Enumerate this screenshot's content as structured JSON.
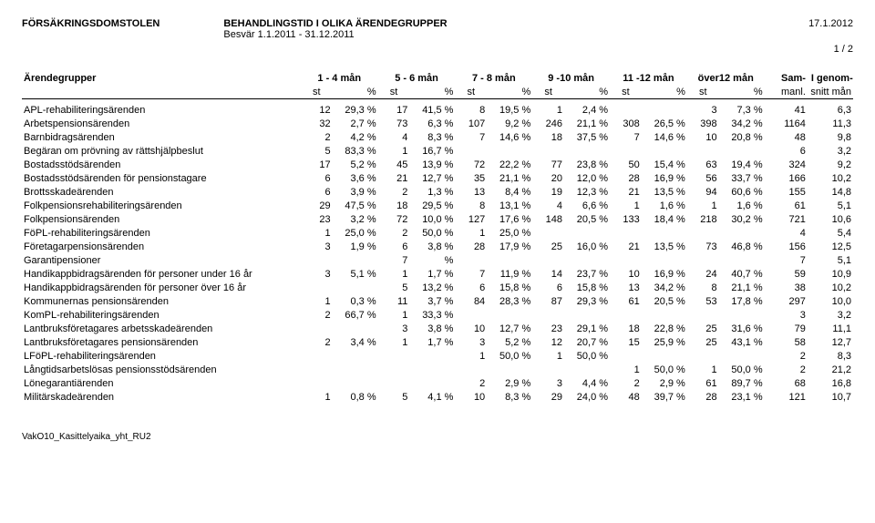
{
  "header": {
    "court": "FÖRSÄKRINGSDOMSTOLEN",
    "title": "BEHANDLINGSTID I OLIKA ÄRENDEGRUPPER",
    "date": "17.1.2012",
    "subtitle": "Besvär 1.1.2011 - 31.12.2011",
    "page": "1 / 2"
  },
  "columns": {
    "group": "Ärendegrupper",
    "ranges": [
      "1 - 4 mån",
      "5 - 6 mån",
      "7 - 8 mån",
      "9 -10 mån",
      "11 -12 mån",
      "över12 mån"
    ],
    "sam": "Sam-",
    "avg1": "I genom-",
    "sub_st": "st",
    "sub_pct": "%",
    "sub_manl": "manl.",
    "sub_snitt": "snitt mån"
  },
  "rows": [
    {
      "label": "APL-rehabiliteringsärenden",
      "c": [
        [
          "12",
          "29,3 %"
        ],
        [
          "17",
          "41,5 %"
        ],
        [
          "8",
          "19,5 %"
        ],
        [
          "1",
          "2,4 %"
        ],
        [
          "",
          ""
        ],
        [
          "3",
          "7,3 %"
        ]
      ],
      "sam": "41",
      "avg": "6,3"
    },
    {
      "label": "Arbetspensionsärenden",
      "c": [
        [
          "32",
          "2,7 %"
        ],
        [
          "73",
          "6,3 %"
        ],
        [
          "107",
          "9,2 %"
        ],
        [
          "246",
          "21,1 %"
        ],
        [
          "308",
          "26,5 %"
        ],
        [
          "398",
          "34,2 %"
        ]
      ],
      "sam": "1164",
      "avg": "11,3"
    },
    {
      "label": "Barnbidragsärenden",
      "c": [
        [
          "2",
          "4,2 %"
        ],
        [
          "4",
          "8,3 %"
        ],
        [
          "7",
          "14,6 %"
        ],
        [
          "18",
          "37,5 %"
        ],
        [
          "7",
          "14,6 %"
        ],
        [
          "10",
          "20,8 %"
        ]
      ],
      "sam": "48",
      "avg": "9,8"
    },
    {
      "label": "Begäran om prövning av rättshjälpbeslut",
      "c": [
        [
          "5",
          "83,3 %"
        ],
        [
          "1",
          "16,7 %"
        ],
        [
          "",
          ""
        ],
        [
          "",
          ""
        ],
        [
          "",
          ""
        ],
        [
          "",
          ""
        ]
      ],
      "sam": "6",
      "avg": "3,2"
    },
    {
      "label": "Bostadsstödsärenden",
      "c": [
        [
          "17",
          "5,2 %"
        ],
        [
          "45",
          "13,9 %"
        ],
        [
          "72",
          "22,2 %"
        ],
        [
          "77",
          "23,8 %"
        ],
        [
          "50",
          "15,4 %"
        ],
        [
          "63",
          "19,4 %"
        ]
      ],
      "sam": "324",
      "avg": "9,2"
    },
    {
      "label": "Bostadsstödsärenden för pensionstagare",
      "c": [
        [
          "6",
          "3,6 %"
        ],
        [
          "21",
          "12,7 %"
        ],
        [
          "35",
          "21,1 %"
        ],
        [
          "20",
          "12,0 %"
        ],
        [
          "28",
          "16,9 %"
        ],
        [
          "56",
          "33,7 %"
        ]
      ],
      "sam": "166",
      "avg": "10,2"
    },
    {
      "label": "Brottsskadeärenden",
      "c": [
        [
          "6",
          "3,9 %"
        ],
        [
          "2",
          "1,3 %"
        ],
        [
          "13",
          "8,4 %"
        ],
        [
          "19",
          "12,3 %"
        ],
        [
          "21",
          "13,5 %"
        ],
        [
          "94",
          "60,6 %"
        ]
      ],
      "sam": "155",
      "avg": "14,8"
    },
    {
      "label": "Folkpensionsrehabiliteringsärenden",
      "c": [
        [
          "29",
          "47,5 %"
        ],
        [
          "18",
          "29,5 %"
        ],
        [
          "8",
          "13,1 %"
        ],
        [
          "4",
          "6,6 %"
        ],
        [
          "1",
          "1,6 %"
        ],
        [
          "1",
          "1,6 %"
        ]
      ],
      "sam": "61",
      "avg": "5,1"
    },
    {
      "label": "Folkpensionsärenden",
      "c": [
        [
          "23",
          "3,2 %"
        ],
        [
          "72",
          "10,0 %"
        ],
        [
          "127",
          "17,6 %"
        ],
        [
          "148",
          "20,5 %"
        ],
        [
          "133",
          "18,4 %"
        ],
        [
          "218",
          "30,2 %"
        ]
      ],
      "sam": "721",
      "avg": "10,6"
    },
    {
      "label": "FöPL-rehabiliteringsärenden",
      "c": [
        [
          "1",
          "25,0 %"
        ],
        [
          "2",
          "50,0 %"
        ],
        [
          "1",
          "25,0 %"
        ],
        [
          "",
          ""
        ],
        [
          "",
          ""
        ],
        [
          "",
          ""
        ]
      ],
      "sam": "4",
      "avg": "5,4"
    },
    {
      "label": "Företagarpensionsärenden",
      "c": [
        [
          "3",
          "1,9 %"
        ],
        [
          "6",
          "3,8 %"
        ],
        [
          "28",
          "17,9 %"
        ],
        [
          "25",
          "16,0 %"
        ],
        [
          "21",
          "13,5 %"
        ],
        [
          "73",
          "46,8 %"
        ]
      ],
      "sam": "156",
      "avg": "12,5"
    },
    {
      "label": "Garantipensioner",
      "c": [
        [
          "",
          ""
        ],
        [
          "7",
          "%"
        ],
        [
          "",
          ""
        ],
        [
          "",
          ""
        ],
        [
          "",
          ""
        ],
        [
          "",
          ""
        ]
      ],
      "sam": "7",
      "avg": "5,1"
    },
    {
      "label": "Handikappbidragsärenden för personer under 16 år",
      "c": [
        [
          "3",
          "5,1 %"
        ],
        [
          "1",
          "1,7 %"
        ],
        [
          "7",
          "11,9 %"
        ],
        [
          "14",
          "23,7 %"
        ],
        [
          "10",
          "16,9 %"
        ],
        [
          "24",
          "40,7 %"
        ]
      ],
      "sam": "59",
      "avg": "10,9"
    },
    {
      "label": "Handikappbidragsärenden för personer över 16 år",
      "c": [
        [
          "",
          ""
        ],
        [
          "5",
          "13,2 %"
        ],
        [
          "6",
          "15,8 %"
        ],
        [
          "6",
          "15,8 %"
        ],
        [
          "13",
          "34,2 %"
        ],
        [
          "8",
          "21,1 %"
        ]
      ],
      "sam": "38",
      "avg": "10,2"
    },
    {
      "label": "Kommunernas pensionsärenden",
      "c": [
        [
          "1",
          "0,3 %"
        ],
        [
          "11",
          "3,7 %"
        ],
        [
          "84",
          "28,3 %"
        ],
        [
          "87",
          "29,3 %"
        ],
        [
          "61",
          "20,5 %"
        ],
        [
          "53",
          "17,8 %"
        ]
      ],
      "sam": "297",
      "avg": "10,0"
    },
    {
      "label": "KomPL-rehabiliteringsärenden",
      "c": [
        [
          "2",
          "66,7 %"
        ],
        [
          "1",
          "33,3 %"
        ],
        [
          "",
          ""
        ],
        [
          "",
          ""
        ],
        [
          "",
          ""
        ],
        [
          "",
          ""
        ]
      ],
      "sam": "3",
      "avg": "3,2"
    },
    {
      "label": "Lantbruksföretagares arbetsskadeärenden",
      "c": [
        [
          "",
          ""
        ],
        [
          "3",
          "3,8 %"
        ],
        [
          "10",
          "12,7 %"
        ],
        [
          "23",
          "29,1 %"
        ],
        [
          "18",
          "22,8 %"
        ],
        [
          "25",
          "31,6 %"
        ]
      ],
      "sam": "79",
      "avg": "11,1"
    },
    {
      "label": "Lantbruksföretagares pensionsärenden",
      "c": [
        [
          "2",
          "3,4 %"
        ],
        [
          "1",
          "1,7 %"
        ],
        [
          "3",
          "5,2 %"
        ],
        [
          "12",
          "20,7 %"
        ],
        [
          "15",
          "25,9 %"
        ],
        [
          "25",
          "43,1 %"
        ]
      ],
      "sam": "58",
      "avg": "12,7"
    },
    {
      "label": "LFöPL-rehabiliteringsärenden",
      "c": [
        [
          "",
          ""
        ],
        [
          "",
          ""
        ],
        [
          "1",
          "50,0 %"
        ],
        [
          "1",
          "50,0 %"
        ],
        [
          "",
          ""
        ],
        [
          "",
          ""
        ]
      ],
      "sam": "2",
      "avg": "8,3"
    },
    {
      "label": "Långtidsarbetslösas pensionsstödsärenden",
      "c": [
        [
          "",
          ""
        ],
        [
          "",
          ""
        ],
        [
          "",
          ""
        ],
        [
          "",
          ""
        ],
        [
          "1",
          "50,0 %"
        ],
        [
          "1",
          "50,0 %"
        ]
      ],
      "sam": "2",
      "avg": "21,2"
    },
    {
      "label": "Lönegarantiärenden",
      "c": [
        [
          "",
          ""
        ],
        [
          "",
          ""
        ],
        [
          "2",
          "2,9 %"
        ],
        [
          "3",
          "4,4 %"
        ],
        [
          "2",
          "2,9 %"
        ],
        [
          "61",
          "89,7 %"
        ]
      ],
      "sam": "68",
      "avg": "16,8"
    },
    {
      "label": "Militärskadeärenden",
      "c": [
        [
          "1",
          "0,8 %"
        ],
        [
          "5",
          "4,1 %"
        ],
        [
          "10",
          "8,3 %"
        ],
        [
          "29",
          "24,0 %"
        ],
        [
          "48",
          "39,7 %"
        ],
        [
          "28",
          "23,1 %"
        ]
      ],
      "sam": "121",
      "avg": "10,7"
    }
  ],
  "footer": "VakO10_Kasittelyaika_yht_RU2"
}
